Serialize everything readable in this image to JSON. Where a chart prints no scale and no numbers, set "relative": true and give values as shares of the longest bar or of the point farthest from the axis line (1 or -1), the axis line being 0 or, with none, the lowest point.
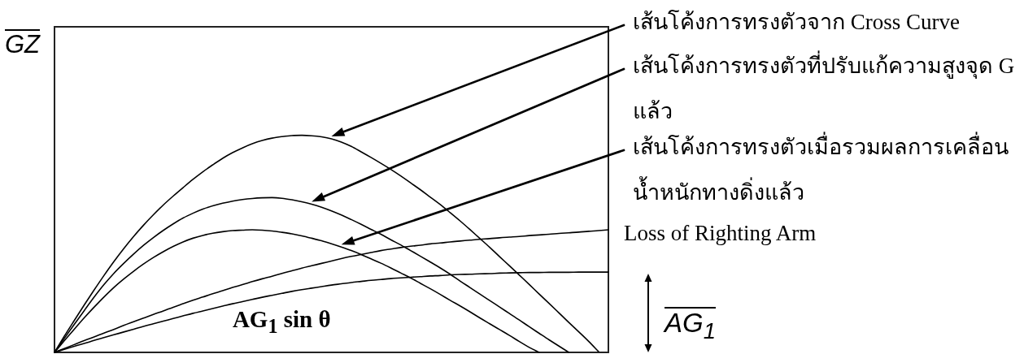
{
  "chart_data": {
    "type": "line",
    "relative": true,
    "ylabel": "GZ",
    "marker": "none",
    "line_style": "solid",
    "categories": [
      null,
      null,
      null,
      null,
      null,
      null,
      null,
      null,
      null,
      null,
      null,
      null,
      null,
      null,
      null,
      null,
      null,
      null,
      null,
      null,
      null,
      null,
      null,
      null,
      null,
      null,
      null,
      null,
      null,
      null,
      null,
      null,
      null,
      null,
      null,
      null,
      null,
      null,
      null,
      null,
      null,
      null,
      null,
      null,
      null,
      null,
      null,
      null,
      null,
      null,
      null,
      null,
      null,
      null,
      null,
      null,
      null
    ],
    "series": [
      {
        "name": "เส้นโค้งการทรงตัวจาก Cross Curve",
        "color": "#000000",
        "values": [
          0,
          0.075,
          0.147,
          0.218,
          0.287,
          0.354,
          0.418,
          0.478,
          0.534,
          0.586,
          0.634,
          0.679,
          0.72,
          0.759,
          0.797,
          0.832,
          0.864,
          0.894,
          0.92,
          0.942,
          0.961,
          0.976,
          0.987,
          0.994,
          0.999,
          1,
          0.998,
          0.993,
          0.984,
          0.969,
          0.949,
          0.924,
          0.898,
          0.871,
          0.843,
          0.813,
          0.781,
          0.749,
          0.715,
          0.681,
          0.644,
          0.606,
          0.566,
          0.525,
          0.484,
          0.441,
          0.399,
          0.356,
          0.313,
          0.269,
          0.226,
          0.182,
          0.138,
          0.095,
          0.051,
          0.004,
          null
        ]
      },
      {
        "name": "เส้นโค้งการทรงตัวที่ปรับแก้ความสูงจุด G แล้ว",
        "color": "#000000",
        "values": [
          0,
          0.065,
          0.129,
          0.192,
          0.254,
          0.312,
          0.364,
          0.41,
          0.453,
          0.493,
          0.529,
          0.562,
          0.592,
          0.619,
          0.641,
          0.66,
          0.675,
          0.687,
          0.697,
          0.704,
          0.709,
          0.712,
          0.713,
          0.71,
          0.703,
          0.694,
          0.683,
          0.669,
          0.652,
          0.633,
          0.612,
          0.59,
          0.567,
          0.544,
          0.519,
          0.495,
          0.469,
          0.443,
          0.416,
          0.389,
          0.36,
          0.329,
          0.299,
          0.269,
          0.239,
          0.209,
          0.179,
          0.149,
          0.118,
          0.088,
          0.058,
          0.029,
          0,
          null,
          null,
          null,
          null
        ]
      },
      {
        "name": "เส้นโค้งการทรงตัวเมื่อรวมผลการเคลื่อนน้ำหนักทางดิ่งแล้ว",
        "color": "#000000",
        "values": [
          0,
          0.054,
          0.107,
          0.159,
          0.208,
          0.255,
          0.299,
          0.338,
          0.374,
          0.407,
          0.437,
          0.464,
          0.488,
          0.509,
          0.526,
          0.539,
          0.549,
          0.556,
          0.561,
          0.563,
          0.565,
          0.563,
          0.559,
          0.553,
          0.546,
          0.537,
          0.526,
          0.514,
          0.5,
          0.485,
          0.469,
          0.451,
          0.431,
          0.411,
          0.389,
          0.366,
          0.343,
          0.318,
          0.293,
          0.267,
          0.24,
          0.214,
          0.187,
          0.159,
          0.132,
          0.105,
          0.078,
          0.05,
          0.023,
          0,
          null,
          null,
          null,
          null,
          null,
          null,
          null
        ]
      },
      {
        "name": "Loss of Righting Arm",
        "color": "#000000",
        "values": [
          0,
          0.018,
          0.036,
          0.054,
          0.071,
          0.089,
          0.106,
          0.124,
          0.141,
          0.158,
          0.175,
          0.191,
          0.208,
          0.224,
          0.24,
          0.255,
          0.27,
          0.284,
          0.299,
          0.312,
          0.326,
          0.339,
          0.351,
          0.364,
          0.376,
          0.388,
          0.399,
          0.41,
          0.421,
          0.432,
          0.442,
          0.451,
          0.46,
          0.469,
          0.476,
          0.483,
          0.489,
          0.494,
          0.5,
          0.504,
          0.509,
          0.513,
          0.517,
          0.521,
          0.524,
          0.528,
          0.531,
          0.534,
          0.538,
          0.541,
          0.544,
          0.548,
          0.551,
          0.554,
          0.558,
          0.561,
          0.565
        ]
      },
      {
        "name": "AG$_{1}$ sin θ",
        "color": "#000000",
        "values": [
          0,
          0.014,
          0.028,
          0.041,
          0.055,
          0.068,
          0.081,
          0.094,
          0.107,
          0.12,
          0.132,
          0.144,
          0.156,
          0.168,
          0.18,
          0.191,
          0.202,
          0.213,
          0.224,
          0.234,
          0.244,
          0.254,
          0.263,
          0.272,
          0.281,
          0.289,
          0.296,
          0.303,
          0.31,
          0.316,
          0.322,
          0.327,
          0.332,
          0.336,
          0.34,
          0.343,
          0.346,
          0.349,
          0.352,
          0.354,
          0.357,
          0.359,
          0.36,
          0.362,
          0.363,
          0.365,
          0.366,
          0.367,
          0.368,
          0.368,
          0.369,
          0.369,
          0.369,
          0.37,
          0.37,
          0.37,
          0.37
        ]
      }
    ],
    "annotations": [
      "AG$_{1}$"
    ]
  }
}
